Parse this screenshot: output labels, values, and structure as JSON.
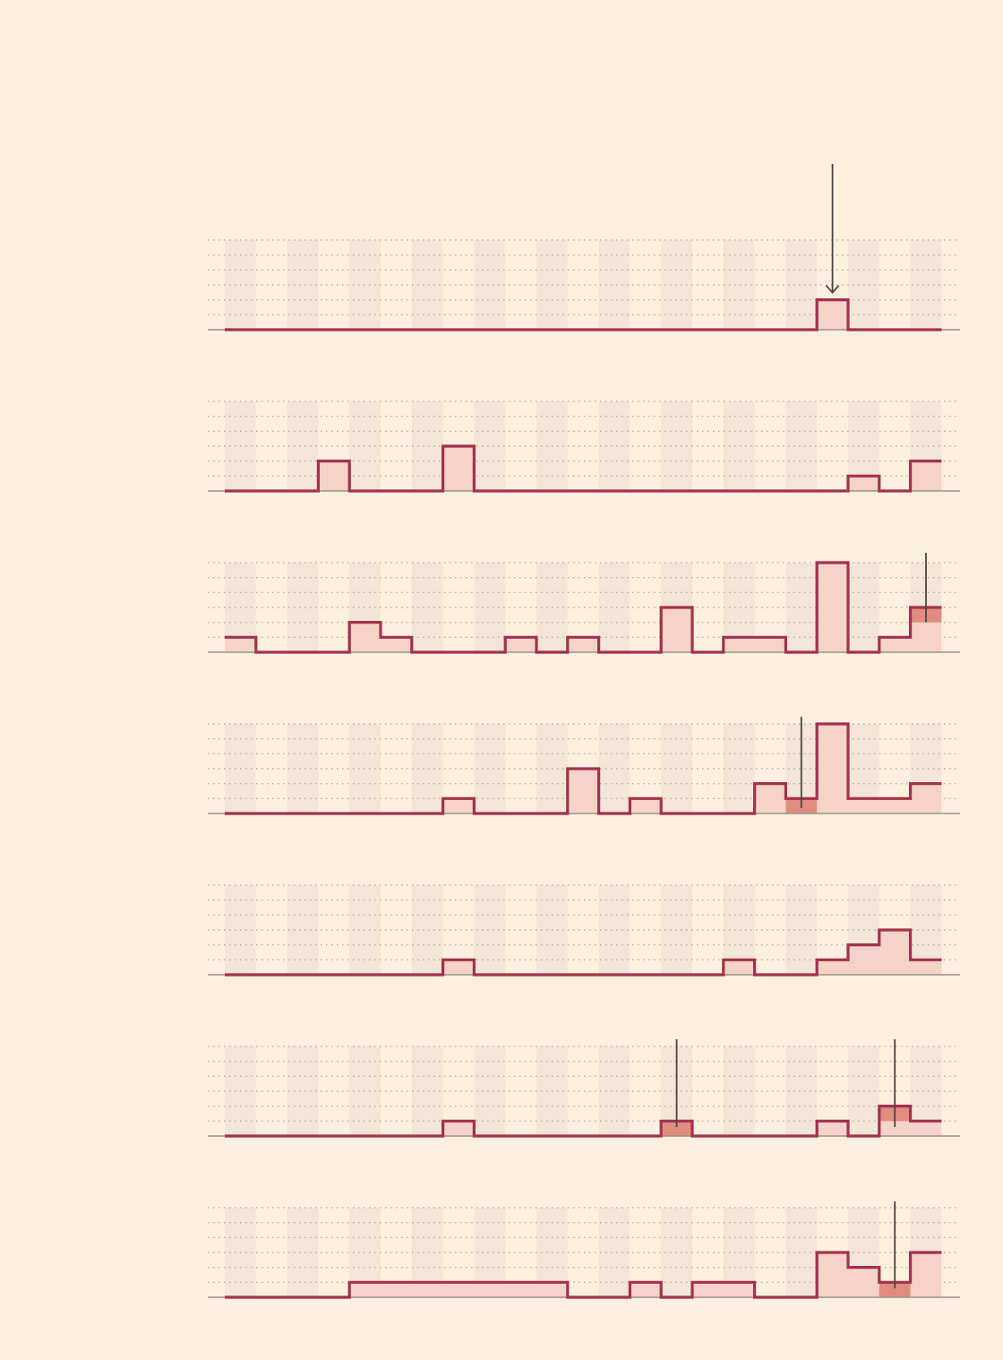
{
  "chart_data": [
    {
      "type": "step-area",
      "categories": 23,
      "values": [
        0,
        0,
        0,
        0,
        0,
        0,
        0,
        0,
        0,
        0,
        0,
        0,
        0,
        0,
        0,
        0,
        0,
        0,
        0,
        2,
        0,
        0,
        0
      ],
      "ylim": [
        0,
        6
      ],
      "highlight": [],
      "markers": [
        {
          "index": 19,
          "arrow": true
        }
      ]
    },
    {
      "type": "step-area",
      "categories": 23,
      "values": [
        0,
        0,
        0,
        2,
        0,
        0,
        0,
        3,
        0,
        0,
        0,
        0,
        0,
        0,
        0,
        0,
        0,
        0,
        0,
        0,
        1,
        0,
        2
      ],
      "ylim": [
        0,
        6
      ],
      "highlight": [],
      "markers": []
    },
    {
      "type": "step-area",
      "categories": 23,
      "values": [
        1,
        0,
        0,
        0,
        2,
        1,
        0,
        0,
        0,
        1,
        0,
        1,
        0,
        0,
        3,
        0,
        1,
        1,
        0,
        6,
        0,
        1,
        3
      ],
      "ylim": [
        0,
        6
      ],
      "highlight": [
        {
          "index": 22,
          "value": 1
        }
      ],
      "markers": [
        {
          "index": 22,
          "arrow": false
        }
      ]
    },
    {
      "type": "step-area",
      "categories": 23,
      "values": [
        0,
        0,
        0,
        0,
        0,
        0,
        0,
        1,
        0,
        0,
        0,
        3,
        0,
        1,
        0,
        0,
        0,
        2,
        1,
        6,
        1,
        1,
        2
      ],
      "ylim": [
        0,
        6
      ],
      "highlight": [
        {
          "index": 18,
          "value": 1
        }
      ],
      "markers": [
        {
          "index": 18,
          "arrow": false
        }
      ]
    },
    {
      "type": "step-area",
      "categories": 23,
      "values": [
        0,
        0,
        0,
        0,
        0,
        0,
        0,
        1,
        0,
        0,
        0,
        0,
        0,
        0,
        0,
        0,
        1,
        0,
        0,
        1,
        2,
        3,
        1
      ],
      "ylim": [
        0,
        6
      ],
      "highlight": [],
      "markers": []
    },
    {
      "type": "step-area",
      "categories": 23,
      "values": [
        0,
        0,
        0,
        0,
        0,
        0,
        0,
        1,
        0,
        0,
        0,
        0,
        0,
        0,
        1,
        0,
        0,
        0,
        0,
        1,
        0,
        2,
        1
      ],
      "ylim": [
        0,
        6
      ],
      "highlight": [
        {
          "index": 14,
          "value": 1
        },
        {
          "index": 21,
          "value": 1
        }
      ],
      "markers": [
        {
          "index": 14,
          "arrow": false
        },
        {
          "index": 21,
          "arrow": false
        }
      ]
    },
    {
      "type": "step-area",
      "categories": 23,
      "values": [
        0,
        0,
        0,
        0,
        1,
        1,
        1,
        1,
        1,
        1,
        1,
        0,
        0,
        1,
        0,
        1,
        1,
        0,
        0,
        3,
        2,
        1,
        3
      ],
      "ylim": [
        0,
        6
      ],
      "highlight": [
        {
          "index": 21,
          "value": 1
        }
      ],
      "markers": [
        {
          "index": 21,
          "arrow": false
        }
      ]
    }
  ],
  "colors": {
    "background": "#fdf0df",
    "band": "#f3e6d6",
    "grid": "#b3aa9f",
    "baseline": "#9a9189",
    "line": "#a3314f",
    "fill": "#f5d3c6",
    "highlight_fill": "#e08c80",
    "marker": "#4a4540"
  }
}
